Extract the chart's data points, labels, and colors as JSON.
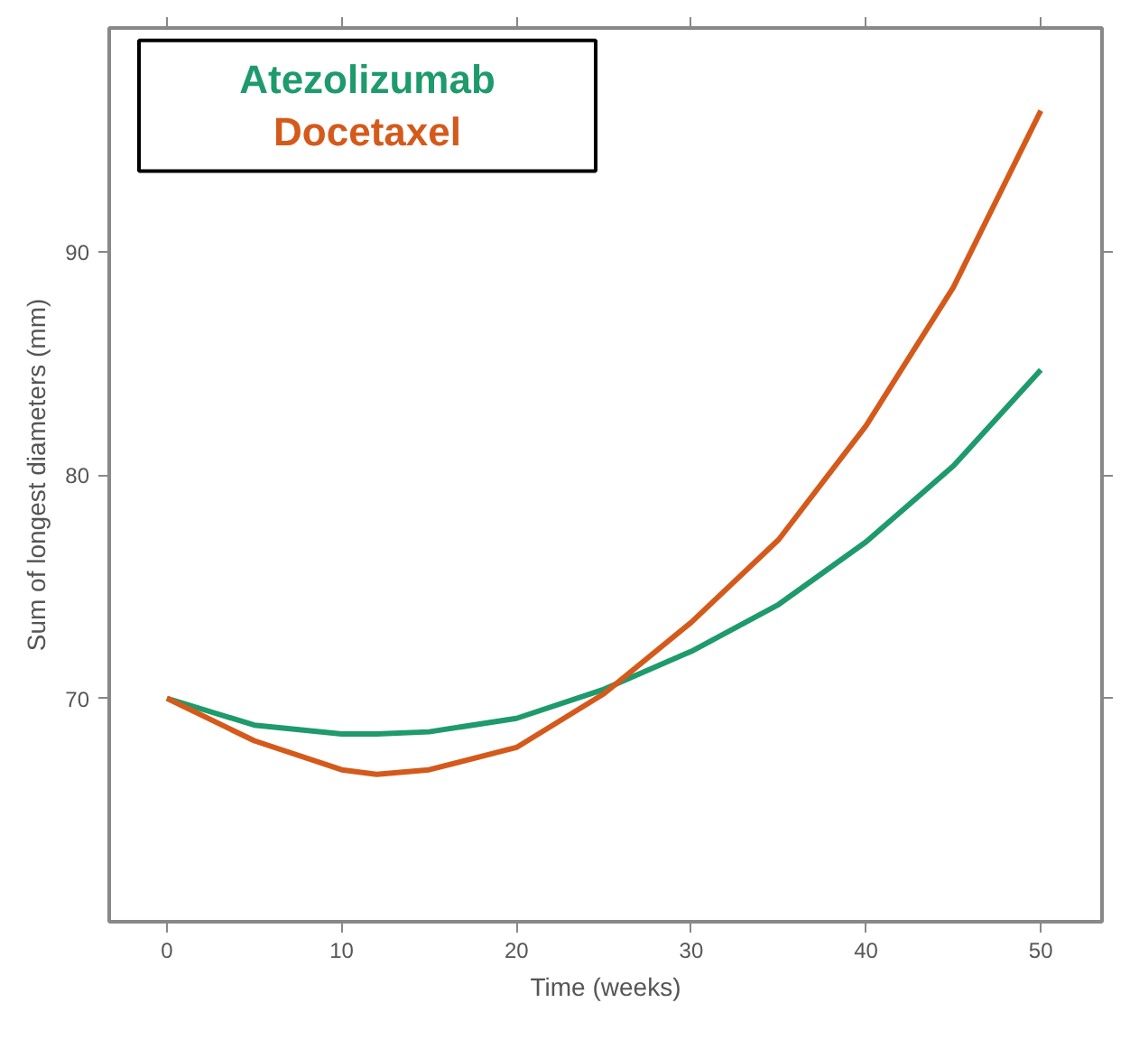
{
  "chart_data": {
    "type": "line",
    "xlabel": "Time (weeks)",
    "ylabel": "Sum of longest diameters (mm)",
    "x": [
      0,
      5,
      10,
      12,
      15,
      20,
      25,
      30,
      35,
      40,
      45,
      50
    ],
    "series": [
      {
        "name": "Atezolizumab",
        "color": "#1e9a6c",
        "values": [
          70,
          68.8,
          68.4,
          68.4,
          68.5,
          69.1,
          70.4,
          72.1,
          74.2,
          77.0,
          80.4,
          84.7
        ]
      },
      {
        "name": "Docetaxel",
        "color": "#d45a1c",
        "values": [
          70,
          68.1,
          66.8,
          66.6,
          66.8,
          67.8,
          70.2,
          73.4,
          77.1,
          82.2,
          88.4,
          96.3
        ]
      }
    ],
    "xlim": [
      -3.3,
      53.5
    ],
    "ylim": [
      60,
      100
    ],
    "xticks": [
      0,
      10,
      20,
      30,
      40,
      50
    ],
    "yticks": [
      70,
      80,
      90
    ],
    "legend": "top left",
    "marker": "none",
    "line_style": "solid"
  }
}
